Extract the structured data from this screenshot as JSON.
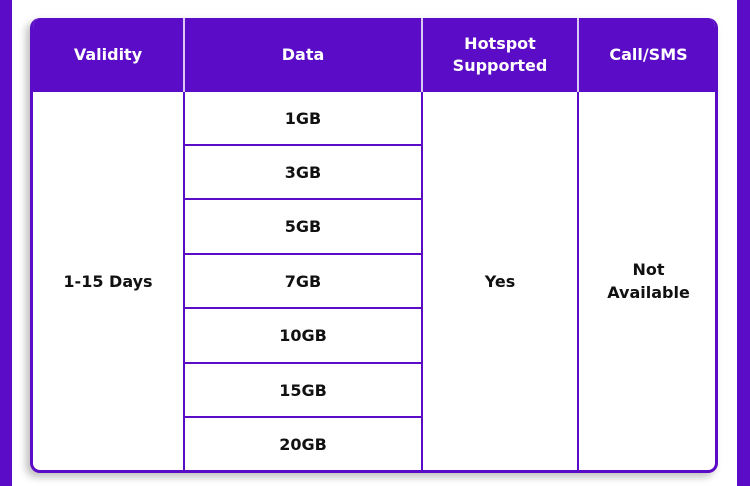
{
  "headers": [
    "Validity",
    "Data",
    "Hotspot Supported",
    "Call/SMS"
  ],
  "validity": "1-15 Days",
  "data": [
    "1GB",
    "3GB",
    "5GB",
    "7GB",
    "10GB",
    "15GB",
    "20GB"
  ],
  "hotspot": "Yes",
  "call_sms": "Not Available",
  "colors": {
    "accent": "#5b0cc6"
  }
}
